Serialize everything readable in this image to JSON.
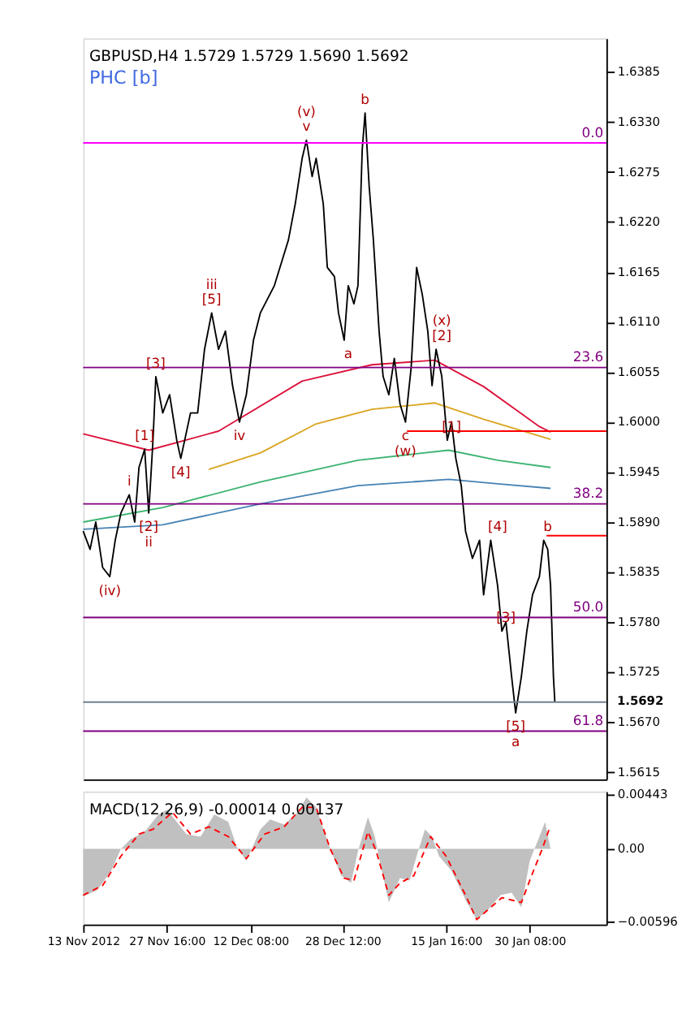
{
  "chart_data": [
    {
      "type": "line",
      "title": "GBPUSD,H4  1.5729 1.5729 1.5690 1.5692",
      "subtitle": "PHC [b]",
      "xlim": [
        "2012-11-13T00:00",
        "2013-02-12T19:00"
      ],
      "ylim": [
        1.5607,
        1.6422
      ],
      "yticks": [
        1.5615,
        {
          "value": 1.567,
          "label": "1.5670"
        },
        1.5725,
        {
          "value": 1.578,
          "label": "1.5780"
        },
        1.5835,
        {
          "value": 1.589,
          "label": "1.5890"
        },
        1.5945,
        {
          "value": 1.6,
          "label": "1.6000"
        },
        1.6055,
        {
          "value": 1.611,
          "label": "1.6110"
        },
        1.6165,
        {
          "value": 1.622,
          "label": "1.6220"
        },
        1.6275,
        {
          "value": 1.633,
          "label": "1.6330"
        },
        1.6385
      ],
      "tick_labels": "y",
      "grid": false,
      "series": [
        {
          "color": "#dc143c",
          "x": [
            "2012-11-13T00:00",
            "2012-11-24T12:00",
            "2012-12-06T18:00",
            "2012-12-21T10:00",
            "2013-01-02T16:00",
            "2013-01-13T17:00",
            "2013-01-22T06:00",
            "2013-02-01T01:00",
            "2013-02-03T00:00"
          ],
          "values": [
            1.5987,
            1.5969,
            1.599,
            1.6045,
            1.6063,
            1.6068,
            1.6039,
            1.5995,
            1.5989
          ]
        },
        {
          "color": "#daa520",
          "x": [
            "2012-12-05T01:00",
            "2012-12-14T02:00",
            "2012-12-23T21:00",
            "2013-01-02T16:00",
            "2013-01-13T17:00",
            "2013-01-22T06:00",
            "2013-02-03T00:00"
          ],
          "values": [
            1.5948,
            1.5966,
            1.5998,
            1.6014,
            1.6021,
            1.6003,
            1.5981
          ]
        },
        {
          "color": "#3cb371",
          "x": [
            "2012-11-13T00:00",
            "2012-11-26T23:00",
            "2012-12-14T02:00",
            "2012-12-31T05:00",
            "2013-01-16T03:00",
            "2013-01-24T17:00",
            "2013-02-03T00:00"
          ],
          "values": [
            1.589,
            1.5906,
            1.5934,
            1.5958,
            1.5969,
            1.5958,
            1.595
          ]
        },
        {
          "color": "#4682b4",
          "x": [
            "2012-11-13T00:00",
            "2012-11-26T23:00",
            "2012-12-14T02:00",
            "2012-12-31T05:00",
            "2013-01-16T03:00",
            "2013-01-24T17:00",
            "2013-02-03T00:00"
          ],
          "values": [
            1.5882,
            1.5887,
            1.591,
            1.593,
            1.5937,
            1.5932,
            1.5927
          ]
        },
        {
          "color": "#ff0000",
          "x": [
            "2013-01-08T19:00",
            "2013-02-12T19:00"
          ],
          "values": [
            1.599,
            1.599
          ]
        },
        {
          "color": "#ff0000",
          "x": [
            "2013-02-02T07:00",
            "2013-02-12T19:00"
          ],
          "values": [
            1.5875,
            1.5875
          ]
        },
        {
          "color": "#000000",
          "x": [
            "2012-11-13T00:00",
            "2012-11-14T05:00",
            "2012-11-15T05:00",
            "2012-11-16T10:00",
            "2012-11-17T16:00",
            "2012-11-18T15:00",
            "2012-11-19T15:00",
            "2012-11-21T02:00",
            "2012-11-22T01:00",
            "2012-11-22T19:00",
            "2012-11-23T19:00",
            "2012-11-24T12:00",
            "2012-11-25T06:00",
            "2012-11-25T18:00",
            "2012-11-26T23:00",
            "2012-11-28T04:00",
            "2012-11-29T10:00",
            "2012-11-30T03:00",
            "2012-12-01T20:00",
            "2012-12-03T02:00",
            "2012-12-04T07:00",
            "2012-12-05T13:00",
            "2012-12-06T18:00",
            "2012-12-07T23:00",
            "2012-12-09T05:00",
            "2012-12-10T10:00",
            "2012-12-11T15:00",
            "2012-12-12T21:00",
            "2012-12-14T02:00",
            "2012-12-16T13:00",
            "2012-12-19T00:00",
            "2012-12-20T05:00",
            "2012-12-21T10:00",
            "2012-12-22T04:00",
            "2012-12-23T04:00",
            "2012-12-23T21:00",
            "2012-12-25T03:00",
            "2012-12-25T20:00",
            "2012-12-27T02:00",
            "2012-12-27T19:00",
            "2012-12-28T19:00",
            "2012-12-29T12:00",
            "2012-12-30T12:00",
            "2012-12-31T05:00",
            "2012-12-31T23:00",
            "2013-01-01T11:00",
            "2013-01-02T04:00",
            "2013-01-02T22:00",
            "2013-01-03T22:00",
            "2013-01-04T15:00",
            "2013-01-05T15:00",
            "2013-01-06T14:00",
            "2013-01-07T14:00",
            "2013-01-08T13:00",
            "2013-01-09T13:00",
            "2013-01-10T12:00",
            "2013-01-11T12:00",
            "2013-01-12T11:00",
            "2013-01-13T05:00",
            "2013-01-13T22:00",
            "2013-01-14T22:00",
            "2013-01-15T21:00",
            "2013-01-16T15:00",
            "2013-01-17T09:00",
            "2013-01-18T08:00",
            "2013-01-19T02:00",
            "2013-01-20T07:00",
            "2013-01-21T13:00",
            "2013-01-22T06:00",
            "2013-01-23T12:00",
            "2013-01-24T17:00",
            "2013-01-25T11:00",
            "2013-01-26T04:00",
            "2013-01-27T04:00",
            "2013-01-27T21:00",
            "2013-01-28T21:00",
            "2013-01-29T20:00",
            "2013-01-30T20:00",
            "2013-02-01T01:00",
            "2013-02-01T19:00",
            "2013-02-02T12:00",
            "2013-02-03T00:00",
            "2013-02-03T12:00",
            "2013-02-03T18:00"
          ],
          "values": [
            1.588,
            1.586,
            1.589,
            1.584,
            1.583,
            1.587,
            1.59,
            1.592,
            1.589,
            1.595,
            1.597,
            1.59,
            1.598,
            1.605,
            1.601,
            1.603,
            1.598,
            1.596,
            1.601,
            1.601,
            1.608,
            1.612,
            1.608,
            1.61,
            1.604,
            1.6,
            1.603,
            1.609,
            1.612,
            1.615,
            1.62,
            1.624,
            1.629,
            1.631,
            1.627,
            1.629,
            1.624,
            1.617,
            1.616,
            1.612,
            1.609,
            1.615,
            1.613,
            1.615,
            1.63,
            1.634,
            1.626,
            1.62,
            1.61,
            1.605,
            1.603,
            1.607,
            1.602,
            1.6,
            1.606,
            1.617,
            1.614,
            1.61,
            1.604,
            1.608,
            1.605,
            1.598,
            1.6,
            1.596,
            1.593,
            1.588,
            1.585,
            1.587,
            1.581,
            1.587,
            1.582,
            1.577,
            1.578,
            1.572,
            1.568,
            1.572,
            1.577,
            1.581,
            1.583,
            1.587,
            1.586,
            1.582,
            1.572,
            1.5692
          ]
        }
      ],
      "ref_lines": [
        {
          "axis": "y",
          "value": 1.6307,
          "color": "#ff00ff"
        },
        {
          "axis": "y",
          "value": 1.606,
          "color": "#800080"
        },
        {
          "axis": "y",
          "value": 1.591,
          "color": "#800080"
        },
        {
          "axis": "y",
          "value": 1.5785,
          "color": "#800080"
        },
        {
          "axis": "y",
          "value": 1.566,
          "color": "#800080"
        },
        {
          "axis": "y",
          "value": 1.5692,
          "label": "1.5692",
          "color": "#708090"
        }
      ],
      "annotations": [
        {
          "text": "0.0",
          "x": "2013-02-12T19:00",
          "y": 1.6307
        },
        {
          "text": "23.6",
          "x": "2013-02-12T19:00",
          "y": 1.606
        },
        {
          "text": "38.2",
          "x": "2013-02-12T19:00",
          "y": 1.591
        },
        {
          "text": "50.0",
          "x": "2013-02-12T19:00",
          "y": 1.5785
        },
        {
          "text": "61.8",
          "x": "2013-02-12T19:00",
          "y": 1.566
        },
        {
          "text": "v",
          "x": "2012-12-22T04:00",
          "y": 1.631
        },
        {
          "text": "(v)",
          "x": "2012-12-22T04:00",
          "y": 1.631
        },
        {
          "text": "b",
          "x": "2013-01-01T11:00",
          "y": 1.634
        },
        {
          "text": "[5]",
          "x": "2012-12-05T13:00",
          "y": 1.612
        },
        {
          "text": "iii",
          "x": "2012-12-05T13:00",
          "y": 1.612
        },
        {
          "text": "[3]",
          "x": "2012-11-25T18:00",
          "y": 1.605
        },
        {
          "text": "[1]",
          "x": "2012-11-23T19:00",
          "y": 1.597
        },
        {
          "text": "[4]",
          "x": "2012-11-30T03:00",
          "y": 1.596
        },
        {
          "text": "iv",
          "x": "2012-12-10T10:00",
          "y": 1.6
        },
        {
          "text": "i",
          "x": "2012-11-21T02:00",
          "y": 1.592
        },
        {
          "text": "[2]",
          "x": "2012-11-24T12:00",
          "y": 1.59
        },
        {
          "text": "ii",
          "x": "2012-11-24T12:00",
          "y": 1.59
        },
        {
          "text": "(iv)",
          "x": "2012-11-17T16:00",
          "y": 1.583
        },
        {
          "text": "a",
          "x": "2012-12-29T12:00",
          "y": 1.609
        },
        {
          "text": "c",
          "x": "2013-01-08T13:00",
          "y": 1.6
        },
        {
          "text": "(w)",
          "x": "2013-01-08T13:00",
          "y": 1.6
        },
        {
          "text": "[1]",
          "x": "2013-01-16T15:00",
          "y": 1.598
        },
        {
          "text": "[2]",
          "x": "2013-01-14T22:00",
          "y": 1.608
        },
        {
          "text": "(x)",
          "x": "2013-01-14T22:00",
          "y": 1.608
        },
        {
          "text": "b",
          "x": "2013-02-02T12:00",
          "y": 1.587
        },
        {
          "text": "[4]",
          "x": "2013-01-24T17:00",
          "y": 1.587
        },
        {
          "text": "[3]",
          "x": "2013-01-26T04:00",
          "y": 1.577
        },
        {
          "text": "[5]",
          "x": "2013-01-27T21:00",
          "y": 1.568
        },
        {
          "text": "a",
          "x": "2013-01-27T21:00",
          "y": 1.568
        }
      ]
    },
    {
      "type": "line",
      "title": "MACD(12,26,9) -0.00014 0.00137",
      "xlim": [
        "2012-11-13T00:00",
        "2013-02-12T19:00"
      ],
      "ylim": [
        -0.0062,
        0.0047
      ],
      "xticks": [
        {
          "value": "2012-11-13T00:00",
          "label": "13 Nov 2012"
        },
        {
          "value": "2012-11-27T16:00",
          "label": "27 Nov 16:00"
        },
        {
          "value": "2012-12-12T08:00",
          "label": "12 Dec 08:00"
        },
        {
          "value": "2012-12-28T12:00",
          "label": "28 Dec 12:00"
        },
        {
          "value": "2013-01-15T16:00",
          "label": "15 Jan 16:00"
        },
        {
          "value": "2013-01-30T08:00",
          "label": "30 Jan 08:00"
        }
      ],
      "yticks": [
        -0.00596,
        {
          "value": 0,
          "label": "0.00"
        },
        0.00443
      ],
      "grid": false,
      "series": [
        {
          "type": "area",
          "color": "#c0c0c0",
          "x": [
            "2012-11-13T00:00",
            "2012-11-15T11:00",
            "2012-11-17T22:00",
            "2012-11-19T15:00",
            "2012-11-21T08:00",
            "2012-11-23T19:00",
            "2012-11-26T05:00",
            "2012-11-27T17:00",
            "2012-11-29T10:00",
            "2012-12-01T03:00",
            "2012-12-03T14:00",
            "2012-12-06T00:00",
            "2012-12-08T11:00",
            "2012-12-09T22:00",
            "2012-12-11T15:00",
            "2012-12-14T02:00",
            "2012-12-15T19:00",
            "2012-12-18T06:00",
            "2012-12-20T17:00",
            "2012-12-22T04:00",
            "2012-12-23T21:00",
            "2012-12-25T14:00",
            "2012-12-26T20:00",
            "2012-12-28T07:00",
            "2012-12-30T00:00",
            "2012-12-31T05:00",
            "2013-01-01T23:00",
            "2013-01-03T04:00",
            "2013-01-04T09:00",
            "2013-01-05T15:00",
            "2013-01-07T14:00",
            "2013-01-09T07:00",
            "2013-01-10T12:00",
            "2013-01-11T23:00",
            "2013-01-13T05:00",
            "2013-01-14T10:00",
            "2013-01-16T15:00",
            "2013-01-19T02:00",
            "2013-01-21T01:00",
            "2013-01-23T00:00",
            "2013-01-25T05:00",
            "2013-01-27T04:00",
            "2013-01-28T21:00",
            "2013-01-30T08:00",
            "2013-02-01T01:00",
            "2013-02-02T01:00",
            "2013-02-03T00:00"
          ],
          "values": [
            -0.0039,
            -0.0034,
            -0.0018,
            0.0,
            0.0008,
            0.0014,
            0.0028,
            0.0032,
            0.0022,
            0.0012,
            0.001,
            0.0028,
            0.0022,
            0.0002,
            -0.001,
            0.0016,
            0.0024,
            0.002,
            0.003,
            0.0042,
            0.0034,
            0.001,
            -0.0006,
            -0.0022,
            -0.0028,
            -0.0002,
            0.0026,
            0.001,
            -0.0018,
            -0.0044,
            -0.0024,
            -0.0026,
            -0.0006,
            0.0016,
            0.001,
            -0.0006,
            -0.0018,
            -0.0042,
            -0.0058,
            -0.005,
            -0.0038,
            -0.0036,
            -0.0048,
            -0.001,
            0.001,
            0.0022,
            0.0
          ]
        },
        {
          "color": "#ff0000",
          "line_style": "dashed",
          "x": [
            "2012-11-13T00:00",
            "2012-11-16T10:00",
            "2012-11-19T15:00",
            "2012-11-22T19:00",
            "2012-11-25T06:00",
            "2012-11-28T16:00",
            "2012-12-01T20:00",
            "2012-12-05T01:00",
            "2012-12-08T11:00",
            "2012-12-11T15:00",
            "2012-12-14T20:00",
            "2012-12-18T06:00",
            "2012-12-21T10:00",
            "2012-12-23T21:00",
            "2012-12-26T08:00",
            "2012-12-28T19:00",
            "2012-12-30T12:00",
            "2013-01-01T23:00",
            "2013-01-03T10:00",
            "2013-01-05T15:00",
            "2013-01-07T14:00",
            "2013-01-10T00:00",
            "2013-01-12T23:00",
            "2013-01-15T16:00",
            "2013-01-19T02:00",
            "2013-01-21T01:00",
            "2013-01-23T00:00",
            "2013-01-25T11:00",
            "2013-01-28T21:00",
            "2013-01-30T20:00",
            "2013-02-01T13:00",
            "2013-02-02T18:00"
          ],
          "values": [
            -0.0038,
            -0.003,
            -0.0006,
            0.0012,
            0.0016,
            0.003,
            0.0012,
            0.0018,
            0.001,
            -0.0008,
            0.0012,
            0.0018,
            0.0034,
            0.0034,
            0.0,
            -0.0024,
            -0.0026,
            0.0014,
            -0.0002,
            -0.0038,
            -0.0028,
            -0.0022,
            0.001,
            -0.0006,
            -0.0038,
            -0.0058,
            -0.005,
            -0.004,
            -0.0044,
            -0.002,
            0.0,
            0.0016
          ]
        }
      ]
    }
  ]
}
